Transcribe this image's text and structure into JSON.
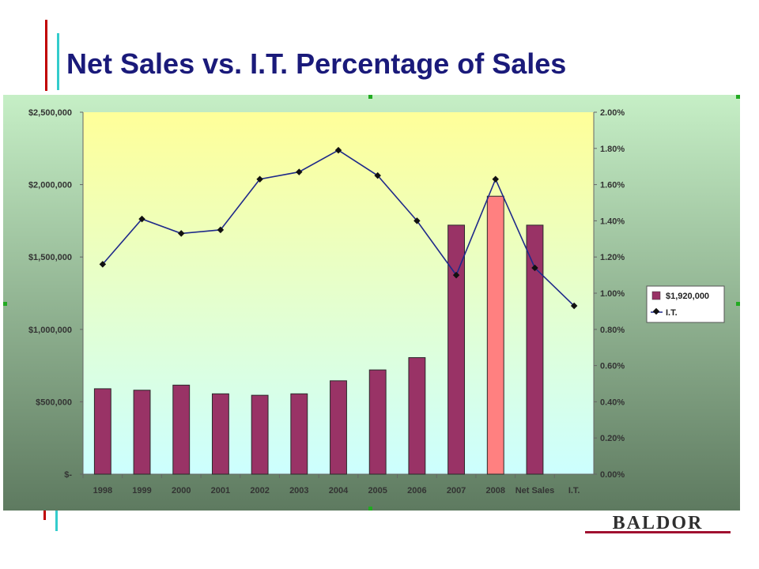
{
  "slide": {
    "title": "Net Sales vs. I.T. Percentage of Sales",
    "logo_text": "BALDOR"
  },
  "colors": {
    "title": "#1a1a7a",
    "bar": "#993366",
    "bar_highlight": "#ff8080",
    "line": "#1f2a8a",
    "plot_top": "#ffff99",
    "plot_bottom": "#ccffff",
    "frame_top": "#c6efc6",
    "frame_bottom": "#5e7a60",
    "accent_red": "#c00000",
    "accent_cyan": "#33cccc",
    "logo": "#2f2f2f",
    "logo_underline": "#a01030"
  },
  "chart_data": {
    "type": "bar",
    "categories": [
      "1998",
      "1999",
      "2000",
      "2001",
      "2002",
      "2003",
      "2004",
      "2005",
      "2006",
      "2007",
      "2008",
      "Net Sales",
      "I.T."
    ],
    "series": [
      {
        "name": "$1,920,000",
        "kind": "bar",
        "axis": "left",
        "values": [
          590000,
          580000,
          615000,
          555000,
          545000,
          555000,
          645000,
          720000,
          805000,
          1720000,
          1920000,
          1720000,
          null
        ],
        "highlight_index": 10
      },
      {
        "name": "I.T.",
        "kind": "line",
        "axis": "right",
        "values": [
          1.16,
          1.41,
          1.33,
          1.35,
          1.63,
          1.67,
          1.79,
          1.65,
          1.4,
          1.1,
          1.63,
          1.14,
          0.93
        ]
      }
    ],
    "left_axis": {
      "min": 0,
      "max": 2500000,
      "ticks": [
        "$-",
        "$500,000",
        "$1,000,000",
        "$1,500,000",
        "$2,000,000",
        "$2,500,000"
      ]
    },
    "right_axis": {
      "min": 0,
      "max": 2.0,
      "ticks": [
        "0.00%",
        "0.20%",
        "0.40%",
        "0.60%",
        "0.80%",
        "1.00%",
        "1.20%",
        "1.40%",
        "1.60%",
        "1.80%",
        "2.00%"
      ]
    },
    "legend_position": "right",
    "grid": false
  }
}
